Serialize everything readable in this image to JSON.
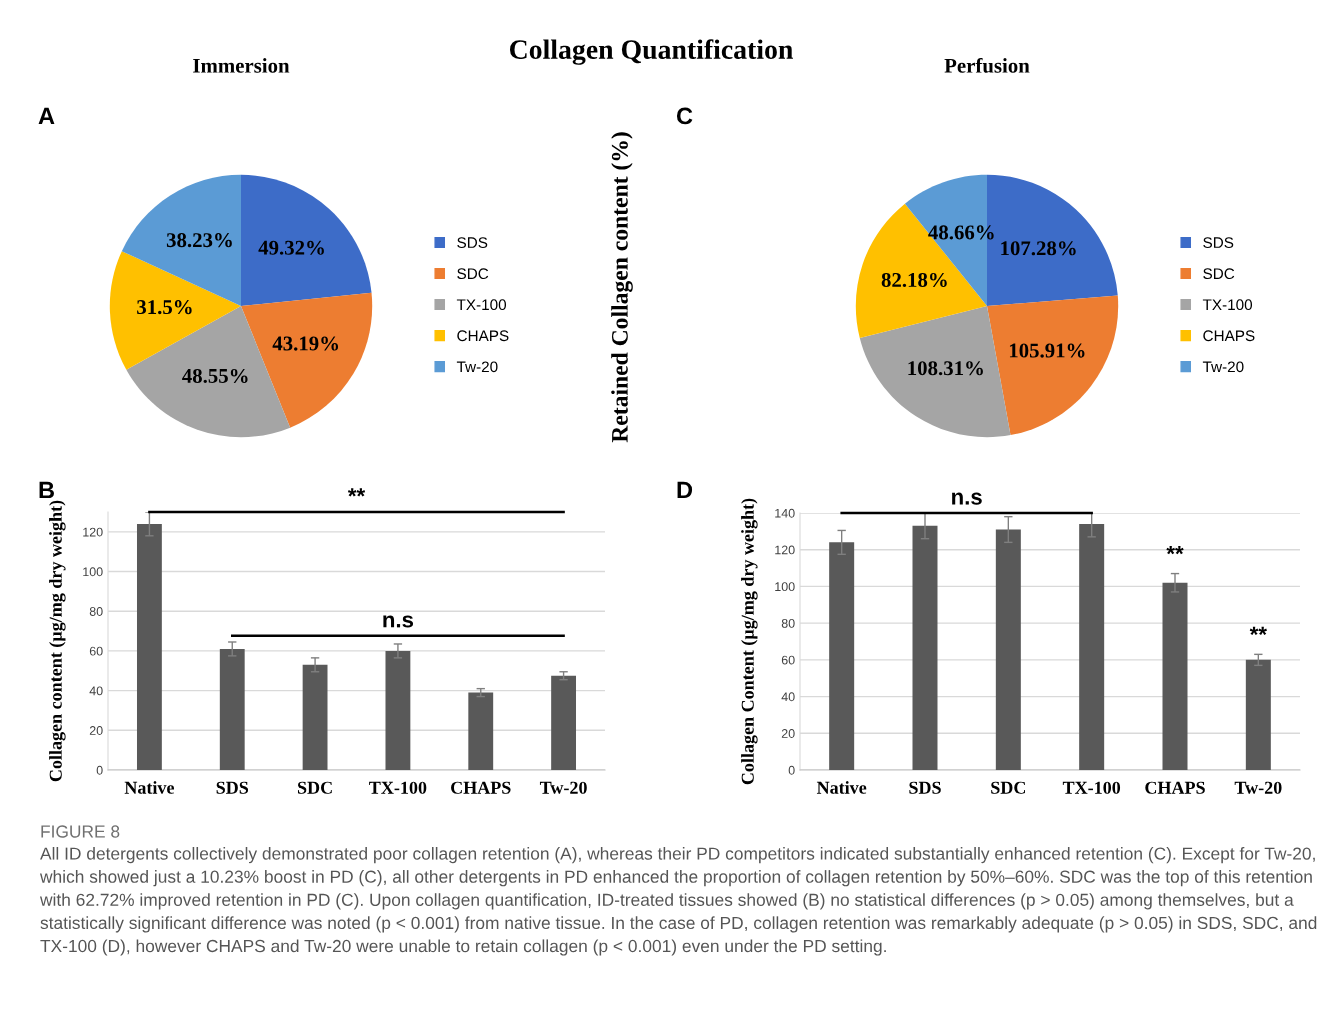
{
  "chart_data": [
    {
      "type": "pie",
      "title": "Immersion",
      "categories": [
        "SDS",
        "SDC",
        "TX-100",
        "CHAPS",
        "Tw-20"
      ],
      "values": [
        49.32,
        43.19,
        48.55,
        31.5,
        38.23
      ],
      "value_labels": [
        "49.32%",
        "43.19%",
        "48.55%",
        "31.5%",
        "38.23%"
      ],
      "colors": [
        "#3d6cc8",
        "#ed7d31",
        "#a5a5a5",
        "#ffc000",
        "#5b9bd5"
      ],
      "legend": "right",
      "annotations": [
        "Collagen Quantification",
        "A"
      ]
    },
    {
      "type": "bar",
      "categories": [
        "Native",
        "SDS",
        "SDC",
        "TX-100",
        "CHAPS",
        "Tw-20"
      ],
      "values": [
        124,
        61,
        53,
        60,
        39,
        47.5
      ],
      "errors": [
        6,
        3.5,
        3.5,
        3.5,
        2,
        2
      ],
      "color": "#595959",
      "ylabel": "Collagen content (µg/mg dry weight)",
      "ylim": [
        0,
        130
      ],
      "yticks": [
        0,
        20,
        40,
        60,
        80,
        100,
        120
      ],
      "grid": "y",
      "annotations": [
        "B",
        "**",
        "n.s"
      ]
    },
    {
      "type": "pie",
      "title": "Perfusion",
      "ylabel": "Retained Collagen content (%)",
      "categories": [
        "SDS",
        "SDC",
        "TX-100",
        "CHAPS",
        "Tw-20"
      ],
      "values": [
        107.28,
        105.91,
        108.31,
        82.18,
        48.66
      ],
      "value_labels": [
        "107.28%",
        "105.91%",
        "108.31%",
        "82.18%",
        "48.66%"
      ],
      "colors": [
        "#3d6cc8",
        "#ed7d31",
        "#a5a5a5",
        "#ffc000",
        "#5b9bd5"
      ],
      "legend": "right",
      "annotations": [
        "C"
      ]
    },
    {
      "type": "bar",
      "categories": [
        "Native",
        "SDS",
        "SDC",
        "TX-100",
        "CHAPS",
        "Tw-20"
      ],
      "values": [
        124,
        133,
        131,
        134,
        102,
        60
      ],
      "errors": [
        6.5,
        7,
        7,
        7,
        5,
        3
      ],
      "color": "#595959",
      "ylabel": "Collagen Content (µg/mg dry weight)",
      "ylim": [
        0,
        140
      ],
      "yticks": [
        0,
        20,
        40,
        60,
        80,
        100,
        120,
        140
      ],
      "grid": "y",
      "annotations": [
        "D",
        "n.s",
        "**",
        "**",
        "FIGURE 8",
        "All ID detergents collectively demonstrated poor collagen retention (A), whereas their PD competitors indicated substantially enhanced retention (C). Except for Tw-20, which showed just a 10.23% boost in PD (C), all other detergents in PD enhanced the proportion of collagen retention by 50%–60%. SDC was the top of this retention with 62.72% improved retention in PD (C). Upon collagen quantification, ID-treated tissues showed (B) no statistical differences (p > 0.05) among themselves, but a statistically significant difference was noted (p < 0.001) from native tissue. In the case of PD, collagen retention was remarkably adequate (p > 0.05) in SDS, SDC, and TX-100 (D), however CHAPS and Tw-20 were unable to retain collagen (p < 0.001) even under the PD setting."
      ]
    }
  ]
}
